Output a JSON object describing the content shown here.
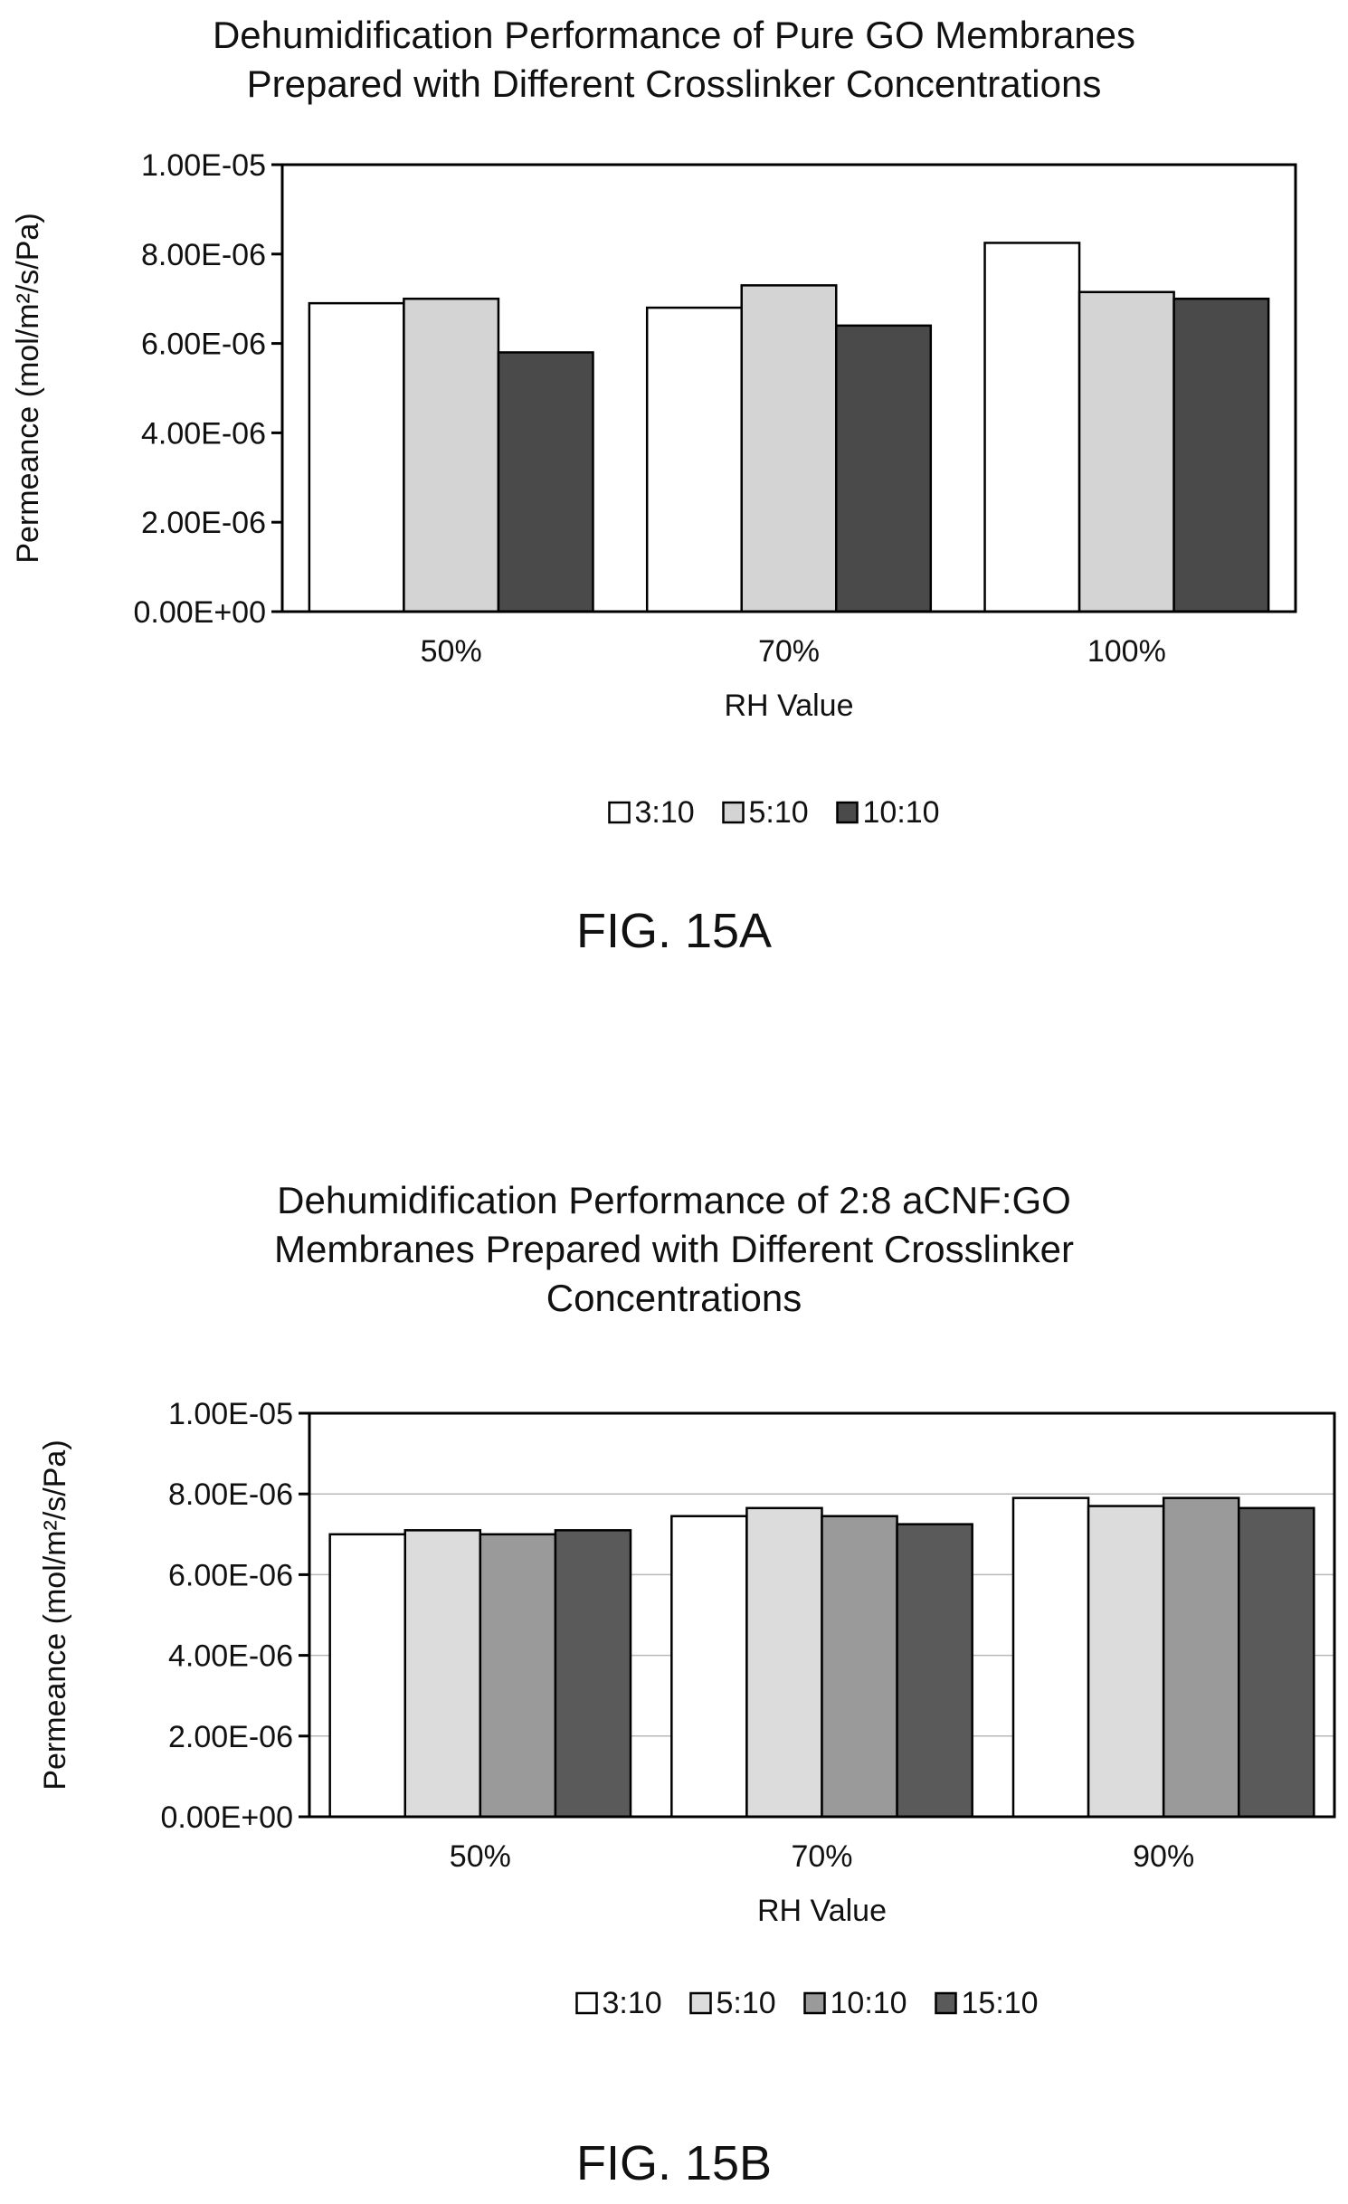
{
  "figures": [
    {
      "caption": "FIG. 15A",
      "chart_data": {
        "type": "bar",
        "title_lines": [
          "Dehumidification Performance of Pure GO Membranes",
          "Prepared with  Different Crosslinker Concentrations"
        ],
        "xlabel": "RH Value",
        "ylabel": "Permeance (mol/m²/s/Pa)",
        "categories": [
          "50%",
          "70%",
          "100%"
        ],
        "series": [
          {
            "name": "3:10",
            "values": [
              6.9e-06,
              6.8e-06,
              8.25e-06
            ],
            "color": "#ffffff"
          },
          {
            "name": "5:10",
            "values": [
              7e-06,
              7.3e-06,
              7.15e-06
            ],
            "color": "#d4d4d4"
          },
          {
            "name": "10:10",
            "values": [
              5.8e-06,
              6.4e-06,
              7e-06
            ],
            "color": "#4a4a4a"
          }
        ],
        "ylim": [
          0,
          1e-05
        ],
        "ytick_labels": [
          "0.00E+00",
          "2.00E-06",
          "4.00E-06",
          "6.00E-06",
          "8.00E-06",
          "1.00E-05"
        ],
        "grid": false,
        "legend": "bottom"
      }
    },
    {
      "caption": "FIG. 15B",
      "chart_data": {
        "type": "bar",
        "title_lines": [
          "Dehumidification Performance of 2:8 aCNF:GO",
          "Membranes Prepared with  Different Crosslinker",
          "Concentrations"
        ],
        "xlabel": "RH Value",
        "ylabel": "Permeance (mol/m²/s/Pa)",
        "categories": [
          "50%",
          "70%",
          "90%"
        ],
        "series": [
          {
            "name": "3:10",
            "values": [
              7e-06,
              7.45e-06,
              7.9e-06
            ],
            "color": "#ffffff"
          },
          {
            "name": "5:10",
            "values": [
              7.1e-06,
              7.65e-06,
              7.7e-06
            ],
            "color": "#dcdcdc"
          },
          {
            "name": "10:10",
            "values": [
              7e-06,
              7.45e-06,
              7.9e-06
            ],
            "color": "#9a9a9a"
          },
          {
            "name": "15:10",
            "values": [
              7.1e-06,
              7.25e-06,
              7.65e-06
            ],
            "color": "#5a5a5a"
          }
        ],
        "ylim": [
          0,
          1e-05
        ],
        "ytick_labels": [
          "0.00E+00",
          "2.00E-06",
          "4.00E-06",
          "6.00E-06",
          "8.00E-06",
          "1.00E-05"
        ],
        "grid": true,
        "legend": "bottom"
      }
    }
  ]
}
